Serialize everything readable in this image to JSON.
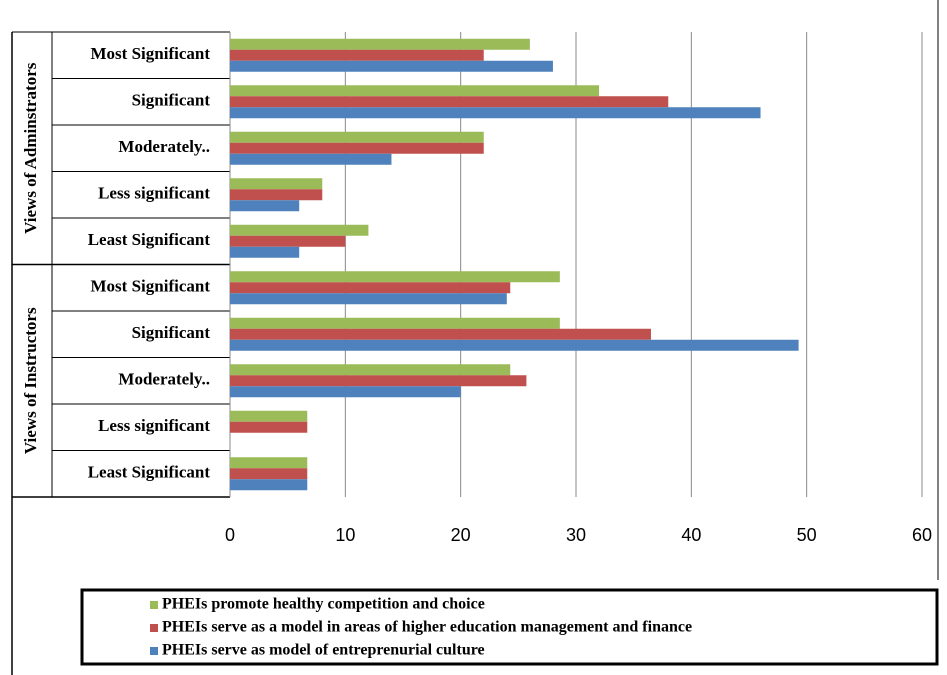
{
  "chart_data": {
    "type": "bar",
    "orientation": "horizontal",
    "categories": [
      "Most Significant",
      "Significant",
      "Moderately..",
      "Less significant",
      "Least Significant",
      "Most Significant",
      "Significant",
      "Moderately..",
      "Less significant",
      "Least Significant"
    ],
    "groups": [
      {
        "label": "Views of Adminstrators",
        "count": 5
      },
      {
        "label": "Views of Instructors",
        "count": 5
      }
    ],
    "series": [
      {
        "name": "PHEIs promote healthy competition and choice",
        "color": "#9bbb59",
        "values": [
          26,
          32,
          22,
          8,
          12,
          28.6,
          28.6,
          24.3,
          6.7,
          6.7
        ]
      },
      {
        "name": "PHEIs serve as a model in areas of higher education management and finance",
        "color": "#c0504d",
        "values": [
          22,
          38,
          22,
          8,
          10,
          24.3,
          36.5,
          25.7,
          6.7,
          6.7
        ]
      },
      {
        "name": "PHEIs serve as model of entreprenurial culture",
        "color": "#4f81bd",
        "values": [
          28,
          46,
          14,
          6,
          6,
          24,
          49.3,
          20,
          0,
          6.7
        ]
      }
    ],
    "xlim": [
      0,
      60
    ],
    "xticks": [
      0,
      10,
      20,
      30,
      40,
      50,
      60
    ],
    "grid": true,
    "legend": "bottom"
  }
}
